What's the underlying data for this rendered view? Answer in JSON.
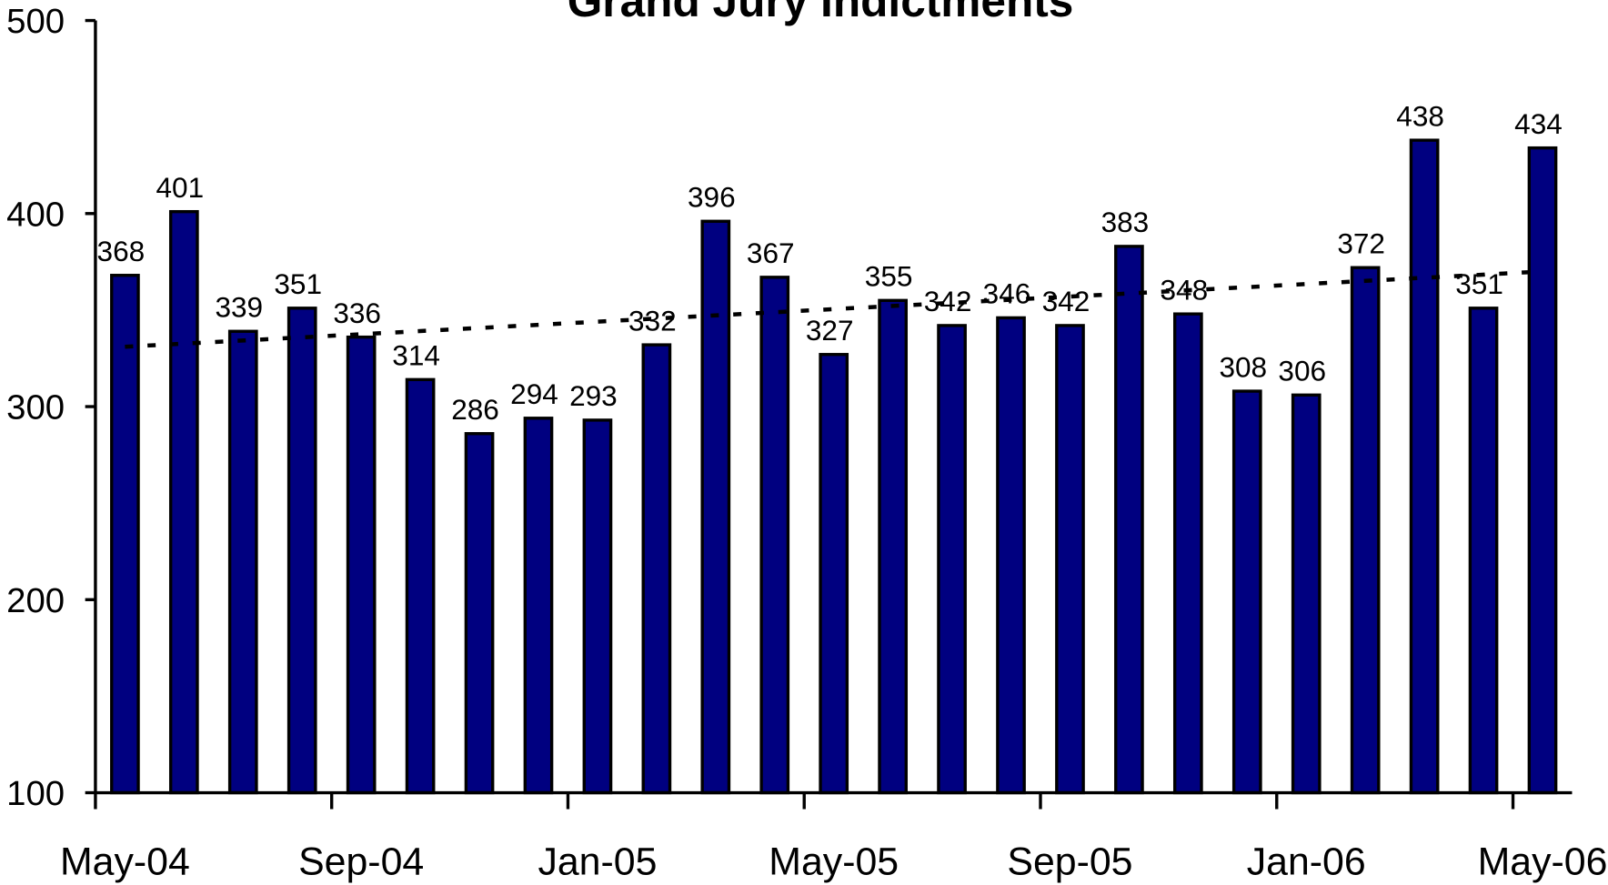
{
  "chart_data": {
    "type": "bar",
    "title": "Grand Jury Indictments",
    "categories": [
      "May-04",
      null,
      null,
      null,
      "Sep-04",
      null,
      null,
      null,
      "Jan-05",
      null,
      null,
      null,
      "May-05",
      null,
      null,
      null,
      "Sep-05",
      null,
      null,
      null,
      "Jan-06",
      null,
      null,
      null,
      "May-06"
    ],
    "values": [
      368,
      401,
      339,
      351,
      336,
      314,
      286,
      294,
      293,
      332,
      396,
      367,
      327,
      355,
      342,
      346,
      342,
      383,
      348,
      308,
      306,
      372,
      438,
      351,
      434
    ],
    "color": "#000080",
    "ylim": [
      100,
      500
    ],
    "yticks": [
      100,
      200,
      300,
      400,
      500
    ],
    "trend_line": {
      "values": [
        331,
        370
      ],
      "color": "#000000"
    }
  }
}
